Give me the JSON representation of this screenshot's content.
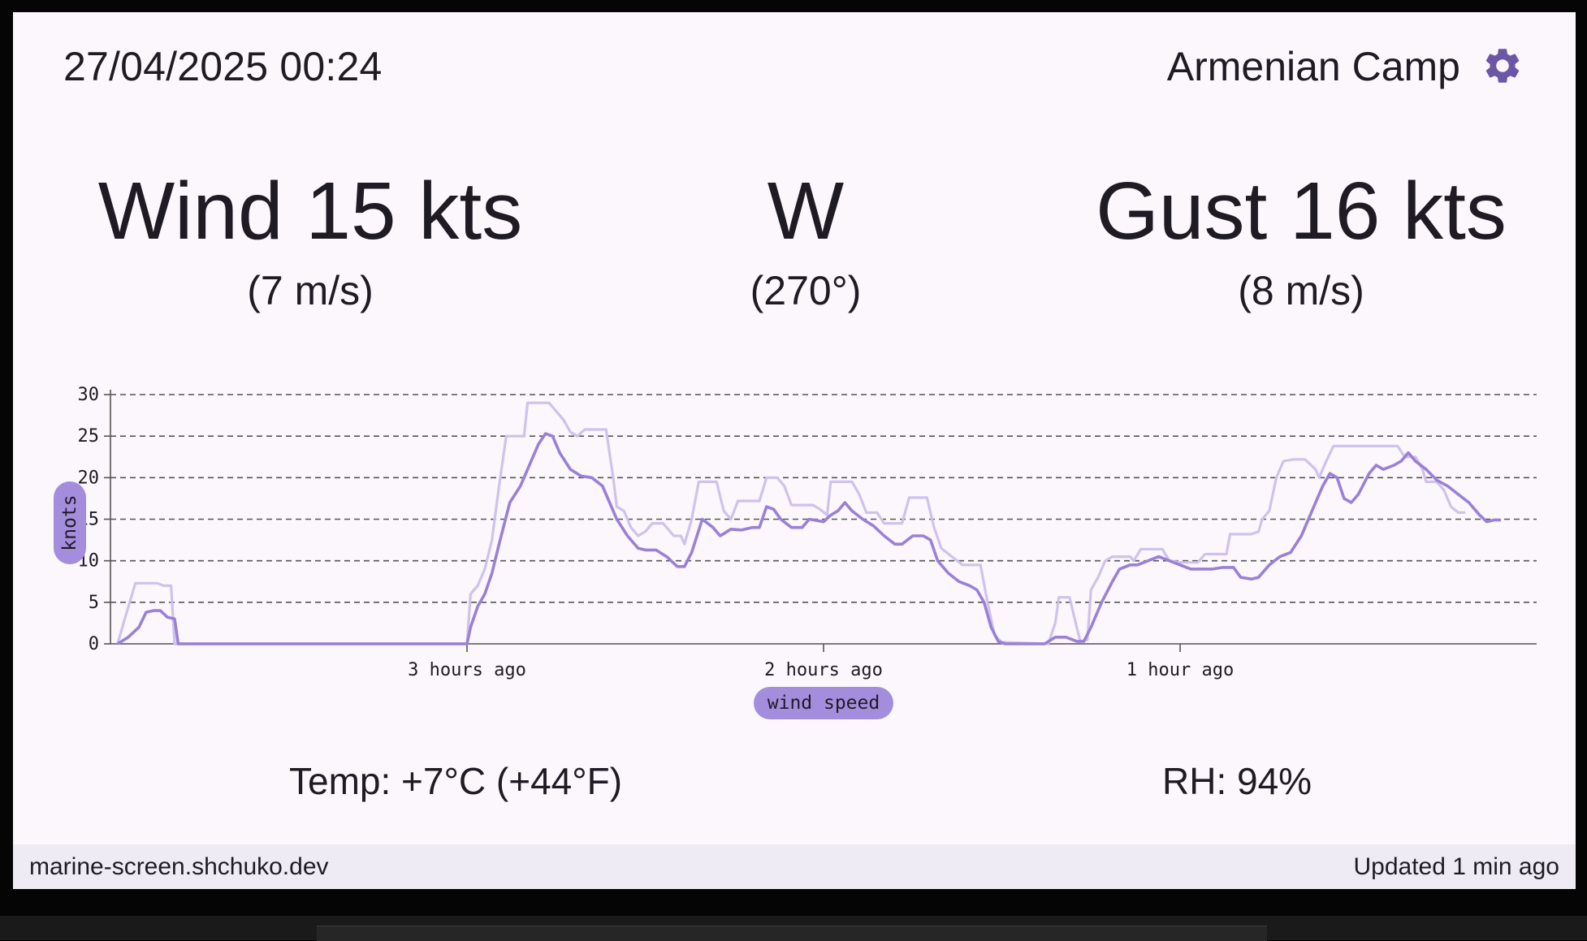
{
  "header": {
    "datetime": "27/04/2025 00:24",
    "location": "Armenian Camp",
    "settings_icon": "gear-icon"
  },
  "wind": {
    "speed": "Wind 15 kts",
    "speed_ms": "(7 m/s)"
  },
  "direction": {
    "cardinal": "W",
    "degrees": "(270°)"
  },
  "gust": {
    "speed": "Gust 16 kts",
    "speed_ms": "(8 m/s)"
  },
  "stats": {
    "temp": "Temp: +7°C (+44°F)",
    "rh": "RH: 94%"
  },
  "status_bar": {
    "site": "marine-screen.shchuko.dev",
    "updated": "Updated 1 min ago"
  },
  "colors": {
    "accent": "#6b57a6",
    "wind_line": "#9a80d6",
    "gust_line": "#cfc2ec",
    "pill": "#a48ddc"
  },
  "chart_data": {
    "type": "line",
    "ylabel": "knots",
    "xlabel": "wind speed",
    "ylim": [
      0,
      30
    ],
    "yticks": [
      0,
      5,
      10,
      15,
      20,
      25,
      30
    ],
    "xlim_hours_ago": [
      4.0,
      0.0
    ],
    "xticks": [
      {
        "hours_ago": 3,
        "label": "3 hours ago"
      },
      {
        "hours_ago": 2,
        "label": "2 hours ago"
      },
      {
        "hours_ago": 1,
        "label": "1 hour ago"
      }
    ],
    "grid": true,
    "series": [
      {
        "name": "wind",
        "points": [
          [
            3.98,
            0
          ],
          [
            3.95,
            0.8
          ],
          [
            3.92,
            2
          ],
          [
            3.9,
            3.8
          ],
          [
            3.88,
            4
          ],
          [
            3.86,
            4
          ],
          [
            3.84,
            3.2
          ],
          [
            3.82,
            3
          ],
          [
            3.81,
            0
          ],
          [
            3.0,
            0
          ],
          [
            2.99,
            2
          ],
          [
            2.97,
            4.5
          ],
          [
            2.95,
            6
          ],
          [
            2.93,
            8.5
          ],
          [
            2.91,
            12
          ],
          [
            2.88,
            17
          ],
          [
            2.85,
            19
          ],
          [
            2.83,
            21
          ],
          [
            2.8,
            24
          ],
          [
            2.78,
            25.3
          ],
          [
            2.76,
            25
          ],
          [
            2.74,
            23
          ],
          [
            2.71,
            21
          ],
          [
            2.68,
            20.2
          ],
          [
            2.65,
            20
          ],
          [
            2.62,
            19
          ],
          [
            2.6,
            17
          ],
          [
            2.58,
            15
          ],
          [
            2.55,
            13
          ],
          [
            2.52,
            11.5
          ],
          [
            2.5,
            11.3
          ],
          [
            2.47,
            11.3
          ],
          [
            2.44,
            10.5
          ],
          [
            2.41,
            9.3
          ],
          [
            2.39,
            9.3
          ],
          [
            2.37,
            11
          ],
          [
            2.34,
            15
          ],
          [
            2.31,
            14
          ],
          [
            2.29,
            13
          ],
          [
            2.26,
            13.8
          ],
          [
            2.23,
            13.7
          ],
          [
            2.2,
            14
          ],
          [
            2.18,
            14
          ],
          [
            2.16,
            16.5
          ],
          [
            2.14,
            16.2
          ],
          [
            2.12,
            15
          ],
          [
            2.09,
            14
          ],
          [
            2.06,
            14
          ],
          [
            2.04,
            15
          ],
          [
            2.0,
            14.7
          ],
          [
            1.98,
            15.5
          ],
          [
            1.96,
            16
          ],
          [
            1.94,
            17
          ],
          [
            1.92,
            16
          ],
          [
            1.89,
            15
          ],
          [
            1.86,
            14.2
          ],
          [
            1.83,
            13
          ],
          [
            1.8,
            12
          ],
          [
            1.78,
            12
          ],
          [
            1.75,
            13
          ],
          [
            1.72,
            13
          ],
          [
            1.7,
            12.5
          ],
          [
            1.68,
            10
          ],
          [
            1.65,
            8.5
          ],
          [
            1.62,
            7.5
          ],
          [
            1.59,
            7
          ],
          [
            1.57,
            6.5
          ],
          [
            1.55,
            5
          ],
          [
            1.53,
            2
          ],
          [
            1.51,
            0.3
          ],
          [
            1.49,
            0
          ],
          [
            1.38,
            0
          ],
          [
            1.35,
            0.8
          ],
          [
            1.32,
            0.8
          ],
          [
            1.29,
            0.3
          ],
          [
            1.27,
            0.3
          ],
          [
            1.25,
            2
          ],
          [
            1.22,
            5
          ],
          [
            1.19,
            7.5
          ],
          [
            1.17,
            9
          ],
          [
            1.14,
            9.5
          ],
          [
            1.12,
            9.5
          ],
          [
            1.09,
            10
          ],
          [
            1.06,
            10.5
          ],
          [
            1.03,
            10
          ],
          [
            1.0,
            9.5
          ],
          [
            0.97,
            9
          ],
          [
            0.94,
            9
          ],
          [
            0.91,
            9
          ],
          [
            0.88,
            9.2
          ],
          [
            0.85,
            9.2
          ],
          [
            0.83,
            8
          ],
          [
            0.8,
            7.8
          ],
          [
            0.78,
            8
          ],
          [
            0.75,
            9.5
          ],
          [
            0.72,
            10.5
          ],
          [
            0.69,
            11
          ],
          [
            0.66,
            13
          ],
          [
            0.63,
            16
          ],
          [
            0.6,
            19
          ],
          [
            0.58,
            20.5
          ],
          [
            0.56,
            20
          ],
          [
            0.54,
            17.5
          ],
          [
            0.52,
            17
          ],
          [
            0.5,
            18
          ],
          [
            0.47,
            20.5
          ],
          [
            0.45,
            21.5
          ],
          [
            0.43,
            21
          ],
          [
            0.4,
            21.5
          ],
          [
            0.38,
            22
          ],
          [
            0.36,
            23
          ],
          [
            0.34,
            22
          ],
          [
            0.31,
            21
          ],
          [
            0.28,
            19.7
          ],
          [
            0.25,
            19
          ],
          [
            0.22,
            18
          ],
          [
            0.19,
            17
          ],
          [
            0.16,
            15.5
          ],
          [
            0.14,
            14.7
          ],
          [
            0.12,
            14.9
          ],
          [
            0.1,
            14.9
          ]
        ]
      },
      {
        "name": "gust",
        "points": [
          [
            3.98,
            0
          ],
          [
            3.96,
            3
          ],
          [
            3.93,
            7.3
          ],
          [
            3.9,
            7.3
          ],
          [
            3.87,
            7.3
          ],
          [
            3.85,
            7
          ],
          [
            3.83,
            7
          ],
          [
            3.82,
            0
          ],
          [
            3.0,
            0
          ],
          [
            2.99,
            6
          ],
          [
            2.97,
            7
          ],
          [
            2.95,
            9
          ],
          [
            2.93,
            12.5
          ],
          [
            2.91,
            19
          ],
          [
            2.89,
            25
          ],
          [
            2.86,
            25
          ],
          [
            2.84,
            25
          ],
          [
            2.83,
            29
          ],
          [
            2.8,
            29
          ],
          [
            2.77,
            29
          ],
          [
            2.75,
            28
          ],
          [
            2.73,
            27
          ],
          [
            2.71,
            25.5
          ],
          [
            2.69,
            25
          ],
          [
            2.67,
            25.8
          ],
          [
            2.64,
            25.8
          ],
          [
            2.61,
            25.8
          ],
          [
            2.59,
            20
          ],
          [
            2.58,
            16.5
          ],
          [
            2.56,
            16
          ],
          [
            2.54,
            14
          ],
          [
            2.52,
            13
          ],
          [
            2.5,
            13.5
          ],
          [
            2.48,
            14.5
          ],
          [
            2.45,
            14.5
          ],
          [
            2.42,
            13
          ],
          [
            2.4,
            13
          ],
          [
            2.39,
            12
          ],
          [
            2.37,
            15
          ],
          [
            2.35,
            19.5
          ],
          [
            2.32,
            19.5
          ],
          [
            2.3,
            19.5
          ],
          [
            2.28,
            16
          ],
          [
            2.26,
            15
          ],
          [
            2.24,
            17.2
          ],
          [
            2.21,
            17.2
          ],
          [
            2.18,
            17.2
          ],
          [
            2.16,
            20
          ],
          [
            2.13,
            20
          ],
          [
            2.11,
            19
          ],
          [
            2.09,
            16.7
          ],
          [
            2.06,
            16.7
          ],
          [
            2.03,
            16.7
          ],
          [
            2.01,
            16.2
          ],
          [
            1.99,
            15.5
          ],
          [
            1.98,
            19.5
          ],
          [
            1.95,
            19.5
          ],
          [
            1.92,
            19.5
          ],
          [
            1.9,
            18
          ],
          [
            1.88,
            15.8
          ],
          [
            1.85,
            15.8
          ],
          [
            1.83,
            14.5
          ],
          [
            1.8,
            14.5
          ],
          [
            1.78,
            14.5
          ],
          [
            1.76,
            17.6
          ],
          [
            1.73,
            17.6
          ],
          [
            1.71,
            17.6
          ],
          [
            1.69,
            14
          ],
          [
            1.67,
            11.5
          ],
          [
            1.64,
            10.5
          ],
          [
            1.61,
            9.5
          ],
          [
            1.59,
            9.5
          ],
          [
            1.56,
            9.5
          ],
          [
            1.54,
            5
          ],
          [
            1.52,
            1
          ],
          [
            1.5,
            0.2
          ],
          [
            1.37,
            0
          ],
          [
            1.35,
            2.5
          ],
          [
            1.34,
            5.6
          ],
          [
            1.31,
            5.6
          ],
          [
            1.29,
            2
          ],
          [
            1.28,
            0.3
          ],
          [
            1.26,
            0.5
          ],
          [
            1.25,
            6.5
          ],
          [
            1.23,
            8
          ],
          [
            1.21,
            10
          ],
          [
            1.19,
            10.5
          ],
          [
            1.16,
            10.5
          ],
          [
            1.14,
            10.5
          ],
          [
            1.13,
            10
          ],
          [
            1.11,
            11.4
          ],
          [
            1.08,
            11.4
          ],
          [
            1.05,
            11.4
          ],
          [
            1.03,
            10
          ],
          [
            1.0,
            9.8
          ],
          [
            0.97,
            9.8
          ],
          [
            0.95,
            9.8
          ],
          [
            0.93,
            10.8
          ],
          [
            0.9,
            10.8
          ],
          [
            0.87,
            10.8
          ],
          [
            0.86,
            13.2
          ],
          [
            0.83,
            13.2
          ],
          [
            0.8,
            13.2
          ],
          [
            0.78,
            13.5
          ],
          [
            0.77,
            15
          ],
          [
            0.75,
            16
          ],
          [
            0.73,
            20
          ],
          [
            0.71,
            22
          ],
          [
            0.68,
            22.2
          ],
          [
            0.65,
            22.2
          ],
          [
            0.62,
            21
          ],
          [
            0.61,
            20
          ],
          [
            0.59,
            22
          ],
          [
            0.57,
            23.8
          ],
          [
            0.54,
            23.8
          ],
          [
            0.5,
            23.8
          ],
          [
            0.46,
            23.8
          ],
          [
            0.42,
            23.8
          ],
          [
            0.39,
            23.8
          ],
          [
            0.37,
            22.5
          ],
          [
            0.34,
            22.5
          ],
          [
            0.32,
            21
          ],
          [
            0.31,
            19.5
          ],
          [
            0.28,
            19.5
          ],
          [
            0.26,
            18.5
          ],
          [
            0.24,
            16.5
          ],
          [
            0.22,
            15.8
          ],
          [
            0.2,
            15.8
          ]
        ]
      }
    ]
  }
}
